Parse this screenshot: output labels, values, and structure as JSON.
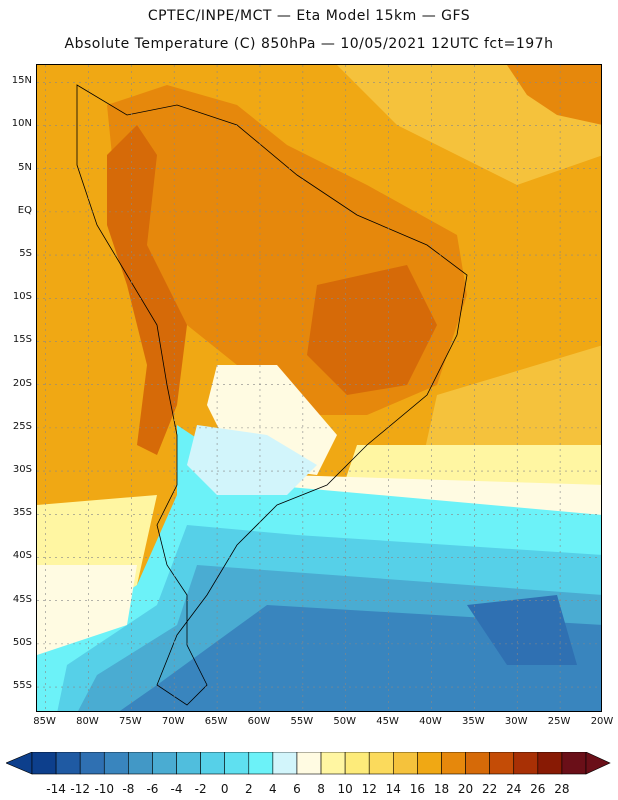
{
  "header": {
    "line1": "CPTEC/INPE/MCT —  Eta Model 15km — GFS",
    "line2": "Absolute Temperature (C) 850hPa — 10/05/2021 12UTC fct=197h"
  },
  "axes": {
    "lat_labels": [
      "15N",
      "10N",
      "5N",
      "EQ",
      "5S",
      "10S",
      "15S",
      "20S",
      "25S",
      "30S",
      "35S",
      "40S",
      "45S",
      "50S",
      "55S"
    ],
    "lat_values": [
      15,
      10,
      5,
      0,
      -5,
      -10,
      -15,
      -20,
      -25,
      -30,
      -35,
      -40,
      -45,
      -50,
      -55
    ],
    "lon_labels": [
      "85W",
      "80W",
      "75W",
      "70W",
      "65W",
      "60W",
      "55W",
      "50W",
      "45W",
      "40W",
      "35W",
      "30W",
      "25W",
      "20W"
    ],
    "lon_values": [
      -85,
      -80,
      -75,
      -70,
      -65,
      -60,
      -55,
      -50,
      -45,
      -40,
      -35,
      -30,
      -25,
      -20
    ],
    "lon_range": [
      -86,
      -20
    ],
    "lat_range": [
      -58,
      17
    ]
  },
  "colorbar": {
    "levels": [
      "-14",
      "-12",
      "-10",
      "-8",
      "-6",
      "-4",
      "-2",
      "0",
      "2",
      "4",
      "6",
      "8",
      "10",
      "12",
      "14",
      "16",
      "18",
      "20",
      "22",
      "24",
      "26",
      "28"
    ],
    "colors": [
      "#0d3f8c",
      "#1f5aa3",
      "#2f70b2",
      "#3985be",
      "#4298c6",
      "#4aacd2",
      "#50bedd",
      "#56d0e8",
      "#5fe0f0",
      "#6cf2f8",
      "#d2f5fb",
      "#fffbe2",
      "#fff6a2",
      "#fdeb7a",
      "#fbda5c",
      "#f5c23c",
      "#f0a814",
      "#e6880c",
      "#d66a08",
      "#c44c06",
      "#a83005",
      "#881a04",
      "#6a0f18"
    ],
    "under_color": "#0d3f8c",
    "over_color": "#6a0f18"
  },
  "field_colors": {
    "ocean_n": "#f0a814",
    "warm": "#e6880c",
    "hot": "#d66a08",
    "mild": "#f5c23c",
    "pale": "#fff6a2",
    "cream": "#fffbe2",
    "cool": "#d2f5fb",
    "cyan": "#6cf2f8",
    "aqua": "#56d0e8",
    "blue1": "#4aacd2",
    "blue2": "#3985be",
    "blue3": "#2f70b2"
  }
}
